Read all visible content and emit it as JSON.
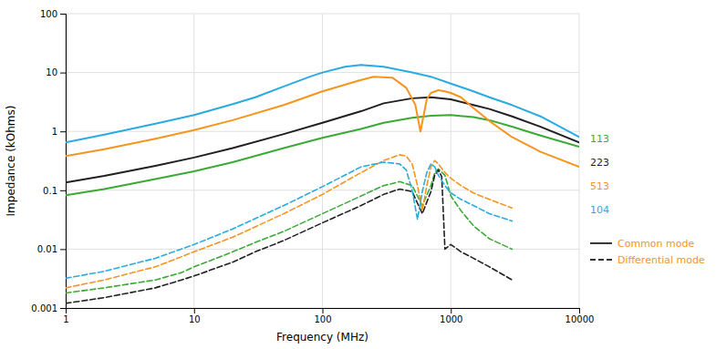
{
  "chart_data": {
    "type": "line",
    "xlabel": "Frequency (MHz)",
    "ylabel": "Impedance (kOhms)",
    "log": true,
    "grid": true,
    "legend": "right",
    "xlim": [
      1,
      10000
    ],
    "ylim": [
      0.001,
      100
    ],
    "xticks": [
      1,
      10,
      100,
      1000,
      10000
    ],
    "yticks": [
      0.001,
      0.01,
      0.1,
      1,
      10,
      100
    ],
    "legend_entries": [
      {
        "label": "Common mode",
        "line_style": "solid",
        "color": "#f7941d"
      },
      {
        "label": "Differential mode",
        "line_style": "dashed",
        "color": "#f7941d"
      }
    ],
    "annotations": [
      {
        "text": "113",
        "color": "#3aaa35"
      },
      {
        "text": "223",
        "color": "#231f20"
      },
      {
        "text": "513",
        "color": "#f7941d"
      },
      {
        "text": "104",
        "color": "#29abe2"
      }
    ],
    "series": [
      {
        "color": "#3aaa35",
        "line_style": "solid",
        "x": [
          1,
          2,
          5,
          10,
          20,
          50,
          100,
          200,
          300,
          500,
          700,
          1000,
          1500,
          2000,
          3000,
          5000,
          10000
        ],
        "values": [
          0.082,
          0.105,
          0.155,
          0.21,
          0.3,
          0.52,
          0.78,
          1.1,
          1.4,
          1.7,
          1.85,
          1.9,
          1.75,
          1.55,
          1.2,
          0.85,
          0.55
        ]
      },
      {
        "color": "#231f20",
        "line_style": "solid",
        "x": [
          1,
          2,
          5,
          10,
          20,
          50,
          100,
          200,
          300,
          500,
          700,
          1000,
          1500,
          2000,
          3000,
          5000,
          10000
        ],
        "values": [
          0.135,
          0.175,
          0.26,
          0.36,
          0.52,
          0.9,
          1.4,
          2.2,
          3.0,
          3.65,
          3.8,
          3.5,
          2.8,
          2.4,
          1.8,
          1.2,
          0.65
        ]
      },
      {
        "color": "#f7941d",
        "line_style": "solid",
        "x": [
          1,
          2,
          5,
          10,
          20,
          50,
          100,
          200,
          250,
          350,
          450,
          530,
          580,
          650,
          700,
          800,
          900,
          1000,
          1200,
          1500,
          2000,
          3000,
          5000,
          10000
        ],
        "values": [
          0.38,
          0.5,
          0.75,
          1.05,
          1.55,
          2.8,
          4.8,
          7.5,
          8.5,
          8.2,
          5.5,
          2.8,
          1.0,
          3.5,
          4.5,
          5.0,
          4.8,
          4.5,
          3.8,
          2.5,
          1.5,
          0.8,
          0.45,
          0.25
        ]
      },
      {
        "color": "#29abe2",
        "line_style": "solid",
        "x": [
          1,
          2,
          5,
          10,
          20,
          30,
          50,
          80,
          100,
          150,
          200,
          300,
          500,
          700,
          1000,
          1500,
          2000,
          3000,
          5000,
          10000
        ],
        "values": [
          0.65,
          0.88,
          1.35,
          1.9,
          2.9,
          3.8,
          5.8,
          8.5,
          10.0,
          12.5,
          13.5,
          12.5,
          10.0,
          8.5,
          6.5,
          4.8,
          3.8,
          2.8,
          1.8,
          0.8
        ]
      },
      {
        "color": "#3aaa35",
        "line_style": "dashed",
        "x": [
          1,
          2,
          5,
          8,
          10,
          20,
          30,
          50,
          100,
          200,
          300,
          400,
          500,
          600,
          700,
          750,
          800,
          900,
          1000,
          1200,
          1500,
          2000,
          3000
        ],
        "values": [
          0.0018,
          0.0022,
          0.003,
          0.004,
          0.005,
          0.009,
          0.013,
          0.02,
          0.04,
          0.08,
          0.12,
          0.14,
          0.12,
          0.055,
          0.12,
          0.2,
          0.23,
          0.18,
          0.08,
          0.045,
          0.025,
          0.015,
          0.01
        ]
      },
      {
        "color": "#231f20",
        "line_style": "dashed",
        "x": [
          1,
          2,
          5,
          8,
          10,
          20,
          30,
          50,
          100,
          200,
          300,
          400,
          500,
          600,
          700,
          750,
          800,
          850,
          900,
          1000,
          1200,
          1500,
          2000,
          3000
        ],
        "values": [
          0.0012,
          0.0015,
          0.0022,
          0.003,
          0.0035,
          0.006,
          0.009,
          0.014,
          0.028,
          0.055,
          0.085,
          0.105,
          0.095,
          0.04,
          0.095,
          0.18,
          0.22,
          0.17,
          0.01,
          0.012,
          0.009,
          0.007,
          0.005,
          0.003
        ]
      },
      {
        "color": "#f7941d",
        "line_style": "dashed",
        "x": [
          1,
          2,
          5,
          10,
          20,
          50,
          100,
          200,
          300,
          400,
          450,
          500,
          550,
          600,
          650,
          700,
          750,
          800,
          900,
          1000,
          1200,
          1500,
          2000,
          3000
        ],
        "values": [
          0.0022,
          0.003,
          0.005,
          0.009,
          0.016,
          0.04,
          0.085,
          0.2,
          0.32,
          0.4,
          0.38,
          0.28,
          0.12,
          0.045,
          0.12,
          0.25,
          0.32,
          0.28,
          0.2,
          0.16,
          0.12,
          0.09,
          0.07,
          0.05
        ]
      },
      {
        "color": "#29abe2",
        "line_style": "dashed",
        "x": [
          1,
          2,
          5,
          10,
          20,
          50,
          100,
          200,
          300,
          400,
          450,
          500,
          550,
          600,
          650,
          700,
          750,
          800,
          900,
          1000,
          1200,
          1500,
          2000,
          3000
        ],
        "values": [
          0.0032,
          0.0042,
          0.007,
          0.012,
          0.022,
          0.055,
          0.115,
          0.25,
          0.3,
          0.28,
          0.22,
          0.1,
          0.032,
          0.095,
          0.2,
          0.28,
          0.25,
          0.18,
          0.12,
          0.09,
          0.07,
          0.055,
          0.04,
          0.03
        ]
      }
    ]
  }
}
